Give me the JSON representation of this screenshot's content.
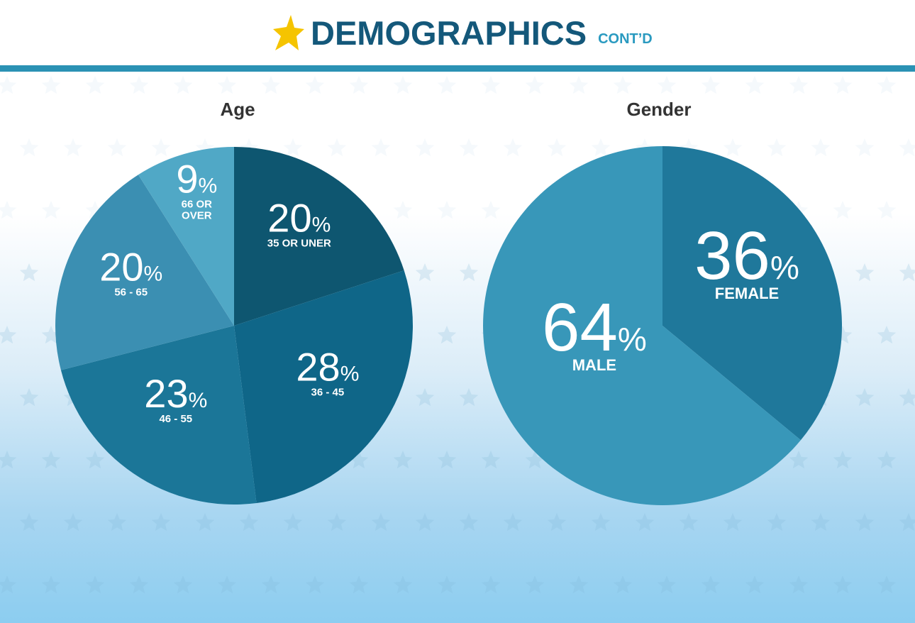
{
  "header": {
    "title": "DEMOGRAPHICS",
    "subtitle": "CONT’D",
    "title_color": "#14587a",
    "subtitle_color": "#2a9ac0",
    "rule_color": "#2b92b4",
    "star_color": "#f5c400"
  },
  "chart_data": [
    {
      "type": "pie",
      "title": "Age",
      "slices": [
        {
          "label": "35 OR UNER",
          "value": 20,
          "display": "20",
          "color": "#0e5670"
        },
        {
          "label": "36 - 45",
          "value": 28,
          "display": "28",
          "color": "#0f6688"
        },
        {
          "label": "46 - 55",
          "value": 23,
          "display": "23",
          "color": "#1b7698"
        },
        {
          "label": "56 - 65",
          "value": 20,
          "display": "20",
          "color": "#3b8fb2"
        },
        {
          "label": "66 OR\nOVER",
          "value": 9,
          "display": "9",
          "color": "#50a8c6"
        }
      ],
      "start_angle_deg": 0,
      "direction": "clockwise"
    },
    {
      "type": "pie",
      "title": "Gender",
      "slices": [
        {
          "label": "FEMALE",
          "value": 36,
          "display": "36",
          "color": "#1f789b"
        },
        {
          "label": "MALE",
          "value": 64,
          "display": "64",
          "color": "#3897b9"
        }
      ],
      "start_angle_deg": 0,
      "direction": "clockwise"
    }
  ]
}
